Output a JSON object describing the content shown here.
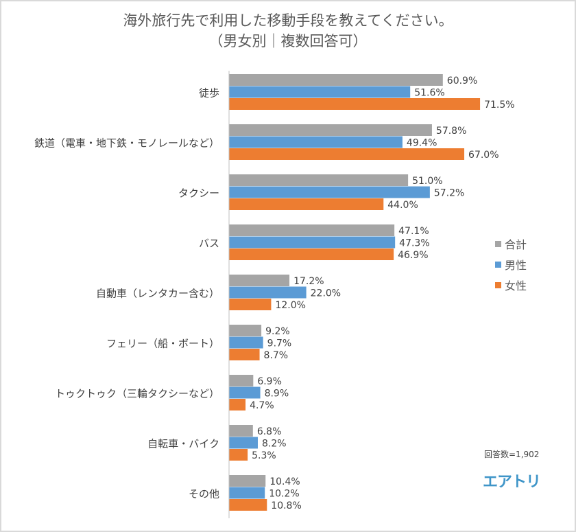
{
  "chart_data": {
    "type": "bar",
    "orientation": "horizontal",
    "title": "海外旅行先で利用した移動手段を教えてください。",
    "subtitle": "（男女別｜複数回答可）",
    "categories": [
      "徒歩",
      "鉄道（電車・地下鉄・モノレールなど）",
      "タクシー",
      "バス",
      "自動車（レンタカー含む）",
      "フェリー（船・ボート）",
      "トゥクトゥク（三輪タクシーなど）",
      "自転車・バイク",
      "その他"
    ],
    "series": [
      {
        "name": "合計",
        "color": "#a5a5a5",
        "values": [
          60.9,
          57.8,
          51.0,
          47.1,
          17.2,
          9.2,
          6.9,
          6.8,
          10.4
        ]
      },
      {
        "name": "男性",
        "color": "#5b9bd5",
        "values": [
          51.6,
          49.4,
          57.2,
          47.3,
          22.0,
          9.7,
          8.9,
          8.2,
          10.2
        ]
      },
      {
        "name": "女性",
        "color": "#ed7d31",
        "values": [
          71.5,
          67.0,
          44.0,
          46.9,
          12.0,
          8.7,
          4.7,
          5.3,
          10.8
        ]
      }
    ],
    "value_format": "percent_1dp",
    "xlim": [
      0,
      100
    ],
    "grid": false,
    "legend_position": "right",
    "note": "回答数=1,902",
    "logo": "エアトリ"
  }
}
